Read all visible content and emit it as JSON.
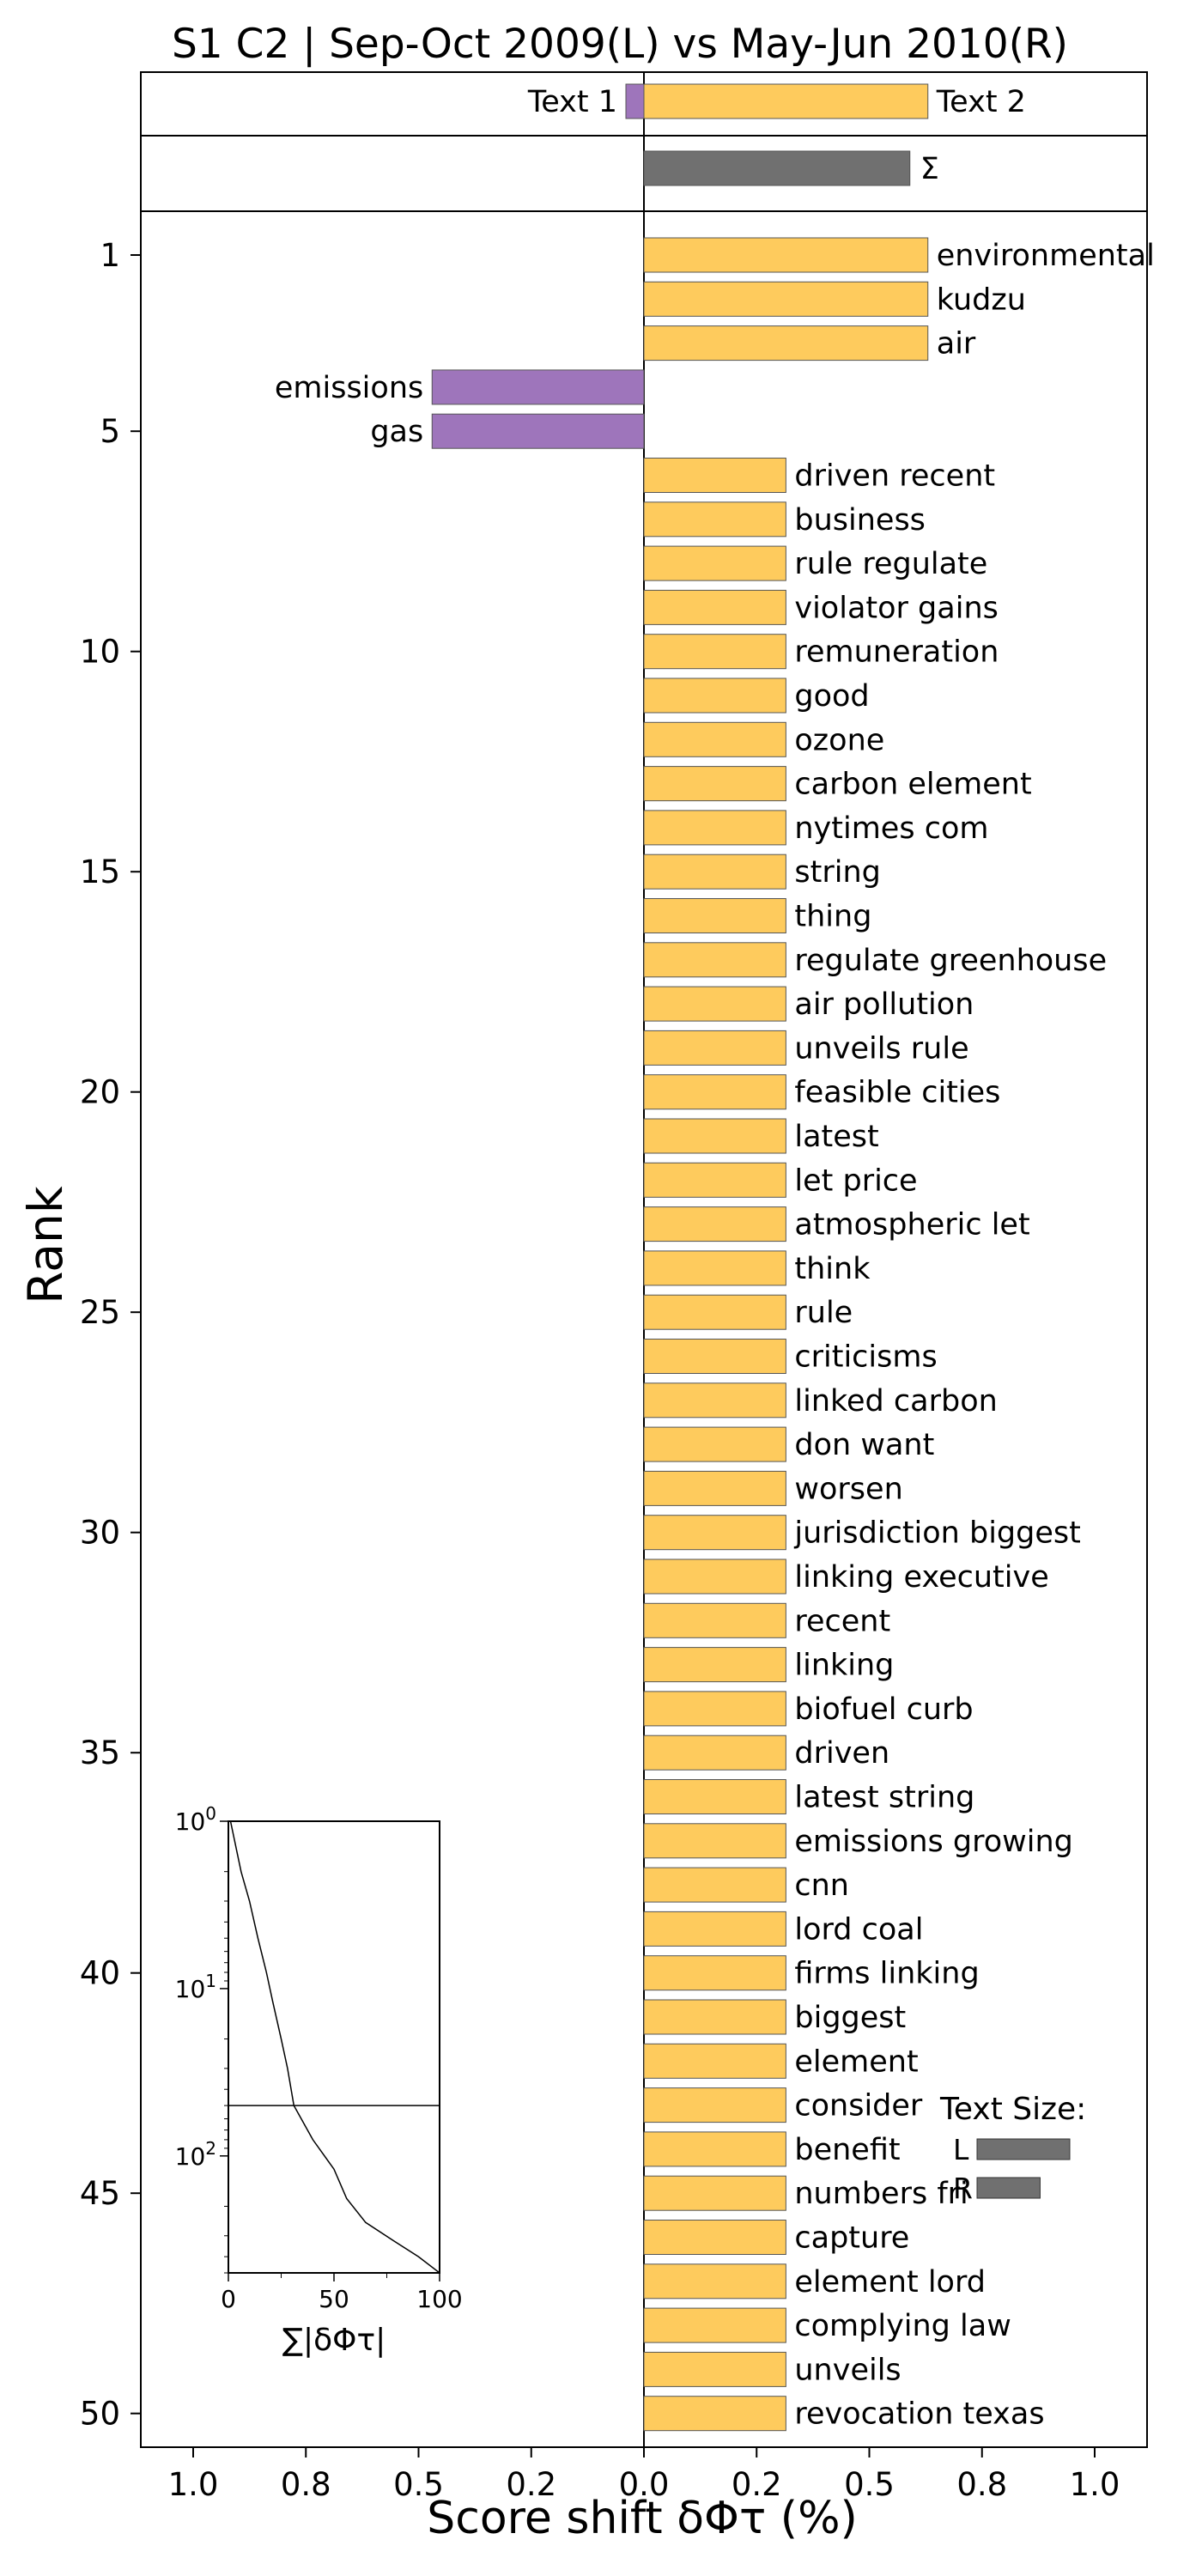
{
  "chart_data": {
    "type": "bar",
    "title": "S1 C2 | Sep-Oct 2009(L) vs May-Jun 2010(R)",
    "xlabel": "Score shift δΦτ (%)",
    "ylabel": "Rank",
    "xlim": [
      -1.1,
      1.1
    ],
    "xticks": [
      -1.0,
      -0.75,
      -0.5,
      -0.25,
      0.0,
      0.25,
      0.5,
      0.75,
      1.0
    ],
    "xtick_labels": [
      "1.0",
      "0.8",
      "0.5",
      "0.2",
      "0.0",
      "0.2",
      "0.5",
      "0.8",
      "1.0"
    ],
    "ylim": [
      0.5,
      50.5
    ],
    "yticks": [
      1,
      5,
      10,
      15,
      20,
      25,
      30,
      35,
      40,
      45,
      50
    ],
    "colors": {
      "left": "#9e75bb",
      "right": "#fecb5d",
      "sum": "#707070",
      "edge": "#555555"
    },
    "summary": {
      "text1_label": "Text 1",
      "text1_value": -0.04,
      "text2_label": "Text 2",
      "text2_value": 0.63,
      "sum_label": "Σ",
      "sum_value": 0.59
    },
    "words": [
      "environmental",
      "kudzu",
      "air",
      "emissions",
      "gas",
      "driven recent",
      "business",
      "rule regulate",
      "violator gains",
      "remuneration",
      "good",
      "ozone",
      "carbon element",
      "nytimes com",
      "string",
      "thing",
      "regulate greenhouse",
      "air pollution",
      "unveils rule",
      "feasible cities",
      "latest",
      "let price",
      "atmospheric let",
      "think",
      "rule",
      "criticisms",
      "linked carbon",
      "don want",
      "worsen",
      "jurisdiction biggest",
      "linking executive",
      "recent",
      "linking",
      "biofuel curb",
      "driven",
      "latest string",
      "emissions growing",
      "cnn",
      "lord coal",
      "firms linking",
      "biggest",
      "element",
      "consider",
      "benefit",
      "numbers fri",
      "capture",
      "element lord",
      "complying law",
      "unveils",
      "revocation texas"
    ],
    "values": [
      0.63,
      0.63,
      0.63,
      -0.47,
      -0.47,
      0.315,
      0.315,
      0.315,
      0.315,
      0.315,
      0.315,
      0.315,
      0.315,
      0.315,
      0.315,
      0.315,
      0.315,
      0.315,
      0.315,
      0.315,
      0.315,
      0.315,
      0.315,
      0.315,
      0.315,
      0.315,
      0.315,
      0.315,
      0.315,
      0.315,
      0.315,
      0.315,
      0.315,
      0.315,
      0.315,
      0.315,
      0.315,
      0.315,
      0.315,
      0.315,
      0.315,
      0.315,
      0.315,
      0.315,
      0.315,
      0.315,
      0.315,
      0.315,
      0.315,
      0.315
    ],
    "inset_cumulative": {
      "xlabel": "∑|δΦτ|",
      "xticks": [
        0,
        50,
        100
      ],
      "ytick_labels": [
        "10",
        "10",
        "10"
      ],
      "ytick_exponents": [
        "0",
        "1",
        "2"
      ],
      "yscale": "log",
      "ylim": [
        1,
        500
      ],
      "hline_at_rank": 50,
      "curve_rank": [
        1,
        2,
        3,
        5,
        8,
        12,
        20,
        30,
        50,
        80,
        120,
        180,
        250,
        320,
        400,
        500
      ],
      "curve_percent": [
        1,
        6,
        10,
        14,
        18,
        21,
        25,
        28,
        31,
        40,
        50,
        56,
        65,
        78,
        90,
        100
      ]
    },
    "inset_text_size": {
      "title": "Text Size:",
      "labels": [
        "L",
        "R"
      ],
      "values": [
        1.0,
        0.68
      ]
    }
  }
}
